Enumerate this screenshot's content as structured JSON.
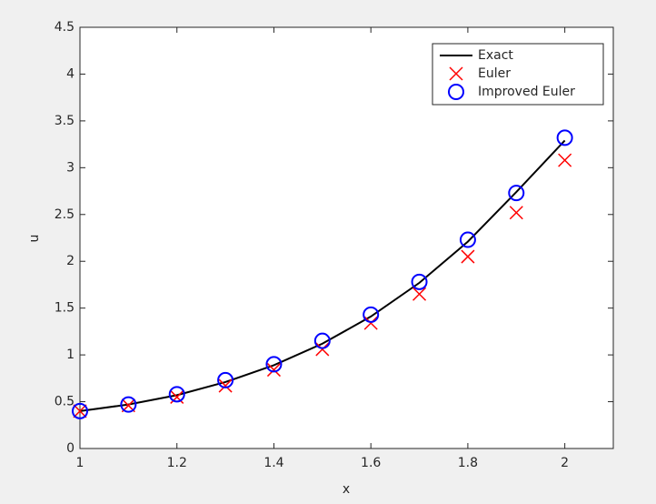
{
  "chart_data": {
    "type": "line",
    "xlabel": "x",
    "ylabel": "u",
    "x": [
      1,
      1.1,
      1.2,
      1.3,
      1.4,
      1.5,
      1.6,
      1.7,
      1.8,
      1.9,
      2
    ],
    "series": [
      {
        "name": "Exact",
        "color": "#000000",
        "marker": "none",
        "values": [
          0.4,
          0.47,
          0.57,
          0.71,
          0.89,
          1.12,
          1.41,
          1.77,
          2.21,
          2.74,
          3.29
        ]
      },
      {
        "name": "Euler",
        "color": "#ff0000",
        "marker": "x",
        "values": [
          0.4,
          0.46,
          0.55,
          0.67,
          0.84,
          1.06,
          1.34,
          1.65,
          2.05,
          2.52,
          3.08
        ]
      },
      {
        "name": "Improved Euler",
        "color": "#0000ff",
        "marker": "o",
        "values": [
          0.4,
          0.47,
          0.58,
          0.73,
          0.9,
          1.15,
          1.43,
          1.78,
          2.23,
          2.73,
          3.32
        ]
      }
    ],
    "xlim": [
      1,
      2.1
    ],
    "xticks": [
      1,
      1.2,
      1.4,
      1.6,
      1.8,
      2
    ],
    "ylim": [
      0,
      4.5
    ],
    "yticks": [
      0,
      0.5,
      1,
      1.5,
      2,
      2.5,
      3,
      3.5,
      4,
      4.5
    ],
    "grid": false,
    "legend": "northeast"
  }
}
